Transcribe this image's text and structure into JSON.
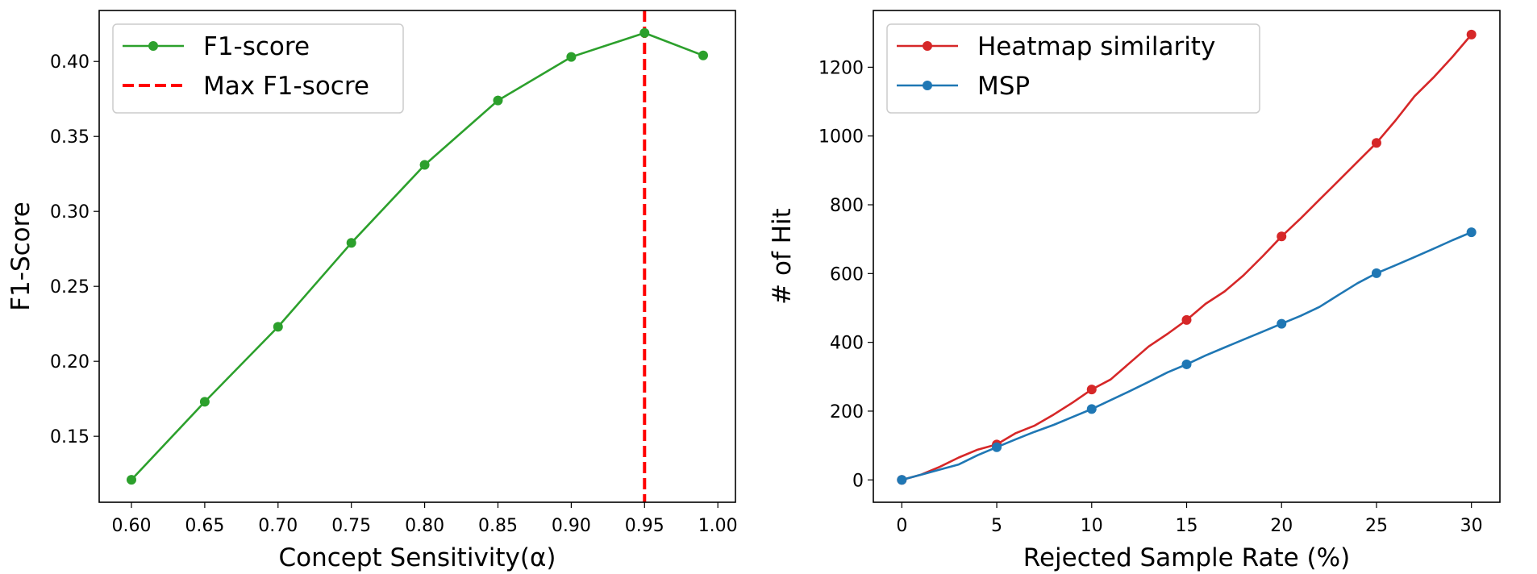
{
  "chart_data": [
    {
      "type": "line",
      "title": "",
      "xlabel": "Concept Sensitivity(α)",
      "ylabel": "F1-Score",
      "xlim": [
        0.578,
        1.012
      ],
      "ylim": [
        0.106,
        0.434
      ],
      "xticks": [
        0.6,
        0.65,
        0.7,
        0.75,
        0.8,
        0.85,
        0.9,
        0.95,
        1.0
      ],
      "xtick_labels": [
        "0.60",
        "0.65",
        "0.70",
        "0.75",
        "0.80",
        "0.85",
        "0.90",
        "0.95",
        "1.00"
      ],
      "yticks": [
        0.15,
        0.2,
        0.25,
        0.3,
        0.35,
        0.4
      ],
      "ytick_labels": [
        "0.15",
        "0.20",
        "0.25",
        "0.30",
        "0.35",
        "0.40"
      ],
      "grid": false,
      "legend_position": "top-left",
      "series": [
        {
          "name": "F1-score",
          "color": "#2ca02c",
          "x": [
            0.6,
            0.65,
            0.7,
            0.75,
            0.8,
            0.85,
            0.9,
            0.95,
            0.99
          ],
          "y": [
            0.121,
            0.173,
            0.223,
            0.279,
            0.331,
            0.374,
            0.403,
            0.419,
            0.404
          ]
        }
      ],
      "vlines": [
        {
          "name": "Max F1-socre",
          "x": 0.95,
          "color": "#ff0000",
          "style": "dashed"
        }
      ]
    },
    {
      "type": "line",
      "title": "",
      "xlabel": "Rejected Sample Rate (%)",
      "ylabel": "# of Hit",
      "xlim": [
        -1.5,
        31.5
      ],
      "ylim": [
        -65,
        1365
      ],
      "xticks": [
        0,
        5,
        10,
        15,
        20,
        25,
        30
      ],
      "xtick_labels": [
        "0",
        "5",
        "10",
        "15",
        "20",
        "25",
        "30"
      ],
      "yticks": [
        0,
        200,
        400,
        600,
        800,
        1000,
        1200
      ],
      "ytick_labels": [
        "0",
        "200",
        "400",
        "600",
        "800",
        "1000",
        "1200"
      ],
      "grid": false,
      "legend_position": "top-left",
      "series": [
        {
          "name": "Heatmap similarity",
          "color": "#d62728",
          "x": [
            0,
            1,
            2,
            3,
            4,
            5,
            6,
            7,
            8,
            9,
            10,
            11,
            12,
            13,
            14,
            15,
            16,
            17,
            18,
            19,
            20,
            21,
            22,
            23,
            24,
            25,
            26,
            27,
            28,
            29,
            30
          ],
          "y": [
            0,
            15,
            38,
            65,
            88,
            103,
            136,
            158,
            190,
            225,
            263,
            292,
            340,
            388,
            425,
            465,
            512,
            548,
            595,
            650,
            708,
            760,
            815,
            870,
            925,
            980,
            1045,
            1115,
            1170,
            1230,
            1295
          ],
          "marker_x": [
            0,
            5,
            10,
            15,
            20,
            25,
            30
          ],
          "marker_y": [
            0,
            103,
            263,
            465,
            708,
            980,
            1295
          ]
        },
        {
          "name": "MSP",
          "color": "#1f77b4",
          "x": [
            0,
            1,
            2,
            3,
            4,
            5,
            6,
            7,
            8,
            9,
            10,
            11,
            12,
            13,
            14,
            15,
            16,
            17,
            18,
            19,
            20,
            21,
            22,
            23,
            24,
            25,
            26,
            27,
            28,
            29,
            30
          ],
          "y": [
            0,
            15,
            30,
            45,
            72,
            95,
            118,
            140,
            160,
            183,
            206,
            232,
            258,
            285,
            313,
            336,
            362,
            385,
            408,
            431,
            454,
            477,
            503,
            538,
            572,
            601,
            624,
            648,
            672,
            697,
            720
          ],
          "marker_x": [
            0,
            5,
            10,
            15,
            20,
            25,
            30
          ],
          "marker_y": [
            0,
            95,
            206,
            336,
            454,
            601,
            720
          ]
        }
      ]
    }
  ]
}
